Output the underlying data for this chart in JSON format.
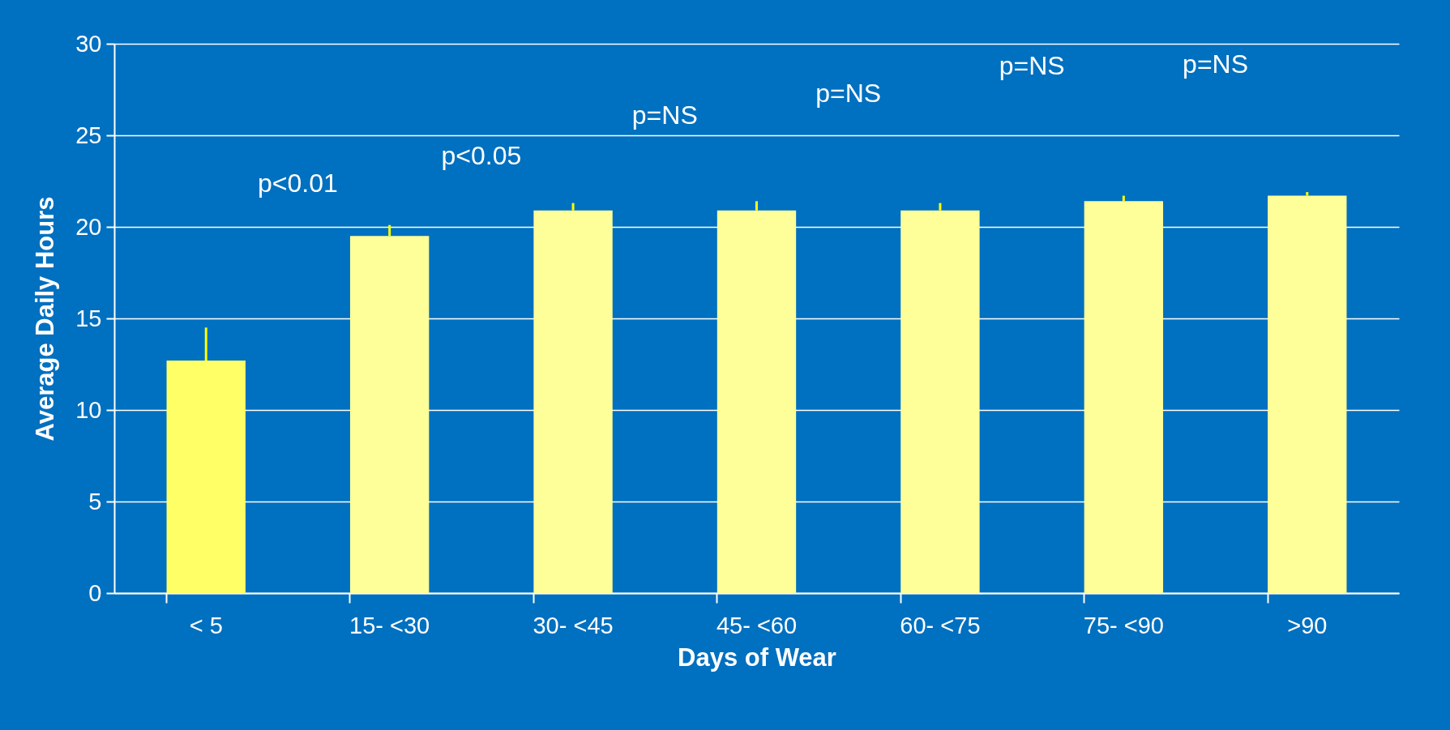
{
  "chart_data": {
    "type": "bar",
    "xlabel": "Days of Wear",
    "ylabel": "Average Daily Hours",
    "categories": [
      "< 5",
      "15- <30",
      "30- <45",
      "45- <60",
      "60- <75",
      "75- <90",
      ">90"
    ],
    "values": [
      12.7,
      19.5,
      20.9,
      20.9,
      20.9,
      21.4,
      21.7
    ],
    "colors": [
      "#ffff66",
      "#ffff99",
      "#ffff99",
      "#ffff99",
      "#ffff99",
      "#ffff99",
      "#ffff99"
    ],
    "errors": [
      [
        12.7,
        14.5
      ],
      [
        19.5,
        20.1
      ],
      [
        20.9,
        21.3
      ],
      [
        20.9,
        21.4
      ],
      [
        20.9,
        21.3
      ],
      [
        21.4,
        21.7
      ],
      [
        21.7,
        21.9
      ]
    ],
    "ylim": [
      0,
      30
    ],
    "yticks": [
      0,
      5,
      10,
      15,
      20,
      25,
      30
    ],
    "grid": "y",
    "annotations": [
      "p<0.01",
      "p<0.05",
      "p=NS",
      "p=NS",
      "p=NS",
      "p=NS"
    ]
  }
}
